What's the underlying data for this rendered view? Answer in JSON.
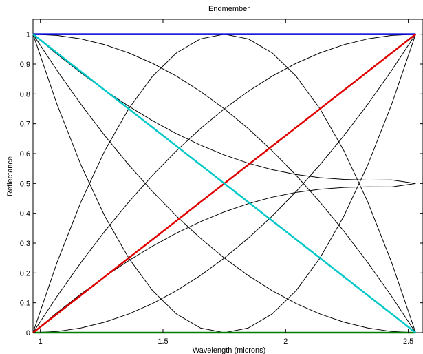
{
  "chart_data": {
    "type": "line",
    "title": "Endmember",
    "xlabel": "Wavelength (microns)",
    "ylabel": "Reflectance",
    "xlim": [
      0.97,
      2.56
    ],
    "ylim": [
      0,
      1.05
    ],
    "x_ticks": [
      {
        "value": 1,
        "label": "1"
      },
      {
        "value": 1.5,
        "label": "1.5"
      },
      {
        "value": 2,
        "label": "2"
      },
      {
        "value": 2.5,
        "label": "2.5"
      }
    ],
    "y_ticks": [
      {
        "value": 0,
        "label": "0"
      },
      {
        "value": 0.1,
        "label": "0.1"
      },
      {
        "value": 0.2,
        "label": "0.2"
      },
      {
        "value": 0.3,
        "label": "0.3"
      },
      {
        "value": 0.4,
        "label": "0.4"
      },
      {
        "value": 0.5,
        "label": "0.5"
      },
      {
        "value": 0.6,
        "label": "0.6"
      },
      {
        "value": 0.7,
        "label": "0.7"
      },
      {
        "value": 0.8,
        "label": "0.8"
      },
      {
        "value": 0.9,
        "label": "0.9"
      },
      {
        "value": 1,
        "label": "1"
      }
    ],
    "grid": false,
    "x": [
      0.97,
      1.0675,
      1.165,
      1.2625,
      1.36,
      1.4575,
      1.555,
      1.6525,
      1.75,
      1.8475,
      1.945,
      2.0425,
      2.14,
      2.2375,
      2.335,
      2.4325,
      2.53
    ],
    "series": [
      {
        "color": "#0000d6",
        "values": [
          1,
          1,
          1,
          1,
          1,
          1,
          1,
          1,
          1,
          1,
          1,
          1,
          1,
          1,
          1,
          1,
          1
        ]
      },
      {
        "color": "#008000",
        "values": [
          0,
          0,
          0,
          0,
          0,
          0,
          0,
          0,
          0,
          0,
          0,
          0,
          0,
          0,
          0,
          0,
          0
        ]
      },
      {
        "color": "#e00000",
        "values": [
          0,
          0.0625,
          0.125,
          0.1875,
          0.25,
          0.3125,
          0.375,
          0.4375,
          0.5,
          0.5625,
          0.625,
          0.6875,
          0.75,
          0.8125,
          0.875,
          0.9375,
          1
        ]
      },
      {
        "color": "#00c8c8",
        "values": [
          1,
          0.9375,
          0.875,
          0.8125,
          0.75,
          0.6875,
          0.625,
          0.5625,
          0.5,
          0.4375,
          0.375,
          0.3125,
          0.25,
          0.1875,
          0.125,
          0.0625,
          0
        ]
      },
      {
        "color": "#000000",
        "values": [
          0,
          0.0039,
          0.0156,
          0.0352,
          0.0625,
          0.0977,
          0.1406,
          0.1914,
          0.25,
          0.3164,
          0.3906,
          0.4727,
          0.5625,
          0.6602,
          0.7656,
          0.8789,
          1
        ]
      },
      {
        "color": "#000000",
        "values": [
          0,
          0.1211,
          0.2344,
          0.3398,
          0.4375,
          0.5273,
          0.6094,
          0.6836,
          0.75,
          0.8086,
          0.8594,
          0.9023,
          0.9375,
          0.9648,
          0.9844,
          0.9961,
          1
        ]
      },
      {
        "color": "#000000",
        "values": [
          1,
          0.8789,
          0.7656,
          0.6602,
          0.5625,
          0.4727,
          0.3906,
          0.3164,
          0.25,
          0.1914,
          0.1406,
          0.0977,
          0.0625,
          0.0352,
          0.0156,
          0.0039,
          0
        ]
      },
      {
        "color": "#000000",
        "values": [
          1,
          0.9961,
          0.9844,
          0.9648,
          0.9375,
          0.9023,
          0.8594,
          0.8086,
          0.75,
          0.6836,
          0.6094,
          0.5273,
          0.4375,
          0.3398,
          0.2344,
          0.1211,
          0
        ]
      },
      {
        "color": "#000000",
        "values": [
          0,
          0.2344,
          0.4375,
          0.6094,
          0.75,
          0.8594,
          0.9375,
          0.9844,
          1,
          0.9844,
          0.9375,
          0.8594,
          0.75,
          0.6094,
          0.4375,
          0.2344,
          0
        ]
      },
      {
        "color": "#000000",
        "values": [
          1,
          0.7656,
          0.5625,
          0.3906,
          0.25,
          0.1406,
          0.0625,
          0.0156,
          0,
          0.0156,
          0.0625,
          0.1406,
          0.25,
          0.3906,
          0.5625,
          0.7656,
          1
        ]
      },
      {
        "color": "#000000",
        "values": [
          0,
          0.0669,
          0.1294,
          0.1876,
          0.2412,
          0.2899,
          0.3335,
          0.3716,
          0.4048,
          0.4322,
          0.4539,
          0.47,
          0.4807,
          0.4866,
          0.4887,
          0.4883,
          0.5
        ]
      },
      {
        "color": "#000000",
        "values": [
          1,
          0.9331,
          0.8706,
          0.8124,
          0.7588,
          0.7101,
          0.6665,
          0.6284,
          0.5952,
          0.5678,
          0.5461,
          0.53,
          0.5193,
          0.5134,
          0.5113,
          0.5117,
          0.5
        ]
      }
    ]
  }
}
